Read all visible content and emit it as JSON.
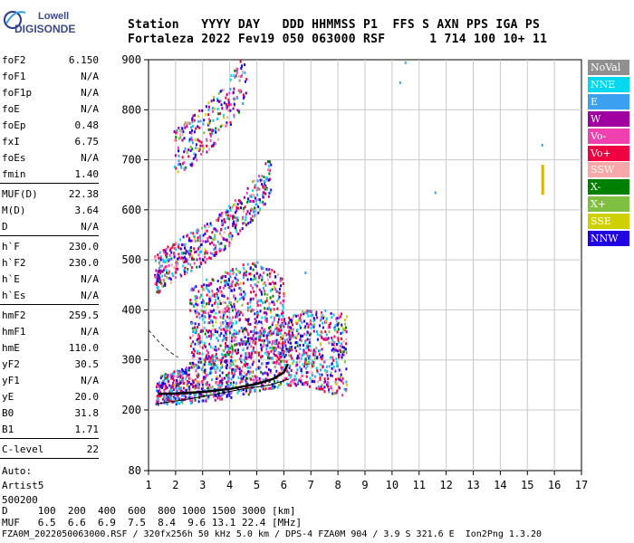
{
  "logo": {
    "line1": "Lowell",
    "line2": "DIGISONDE"
  },
  "header": {
    "row1": "Station   YYYY DAY   DDD HHMMSS P1  FFS S AXN PPS IGA PS",
    "row2": "Fortaleza 2022 Fev19 050 063000 RSF      1 714 100 10+ 11"
  },
  "params": [
    {
      "label": "foF2",
      "value": "6.150"
    },
    {
      "label": "foF1",
      "value": "N/A"
    },
    {
      "label": "foF1p",
      "value": "N/A"
    },
    {
      "label": "foE",
      "value": "N/A"
    },
    {
      "label": "foEp",
      "value": "0.48"
    },
    {
      "label": "fxI",
      "value": "6.75"
    },
    {
      "label": "foEs",
      "value": "N/A"
    },
    {
      "label": "fmin",
      "value": "1.40"
    },
    {
      "label": "MUF(D)",
      "value": "22.38"
    },
    {
      "label": "M(D)",
      "value": "3.64"
    },
    {
      "label": "D",
      "value": "N/A"
    },
    {
      "label": "h`F",
      "value": "230.0"
    },
    {
      "label": "h`F2",
      "value": "230.0"
    },
    {
      "label": "h`E",
      "value": "N/A"
    },
    {
      "label": "h`Es",
      "value": "N/A"
    },
    {
      "label": "hmF2",
      "value": "259.5"
    },
    {
      "label": "hmF1",
      "value": "N/A"
    },
    {
      "label": "hmE",
      "value": "110.0"
    },
    {
      "label": "yF2",
      "value": "30.5"
    },
    {
      "label": "yF1",
      "value": "N/A"
    },
    {
      "label": "yE",
      "value": "20.0"
    },
    {
      "label": "B0",
      "value": "31.8"
    },
    {
      "label": "B1",
      "value": "1.71"
    },
    {
      "label": "C-level",
      "value": "22"
    }
  ],
  "auto": {
    "line1": "Auto:",
    "line2": "Artist5",
    "line3": "500200"
  },
  "legend": [
    {
      "label": "NoVal",
      "color": "#909090"
    },
    {
      "label": "NNE",
      "color": "#00d8f0"
    },
    {
      "label": "E",
      "color": "#3ca0f0"
    },
    {
      "label": "W",
      "color": "#a000a0"
    },
    {
      "label": "Vo-",
      "color": "#f040b0"
    },
    {
      "label": "Vo+",
      "color": "#f00040"
    },
    {
      "label": "SSW",
      "color": "#f8a8a8"
    },
    {
      "label": "X-",
      "color": "#008000"
    },
    {
      "label": "X+",
      "color": "#80c040"
    },
    {
      "label": "SSE",
      "color": "#d0d000"
    },
    {
      "label": "NNW",
      "color": "#2000e0"
    }
  ],
  "footer": {
    "row1": "D     100  200  400  600  800 1000 1500 3000 [km]",
    "row2": "MUF   6.5  6.6  6.9  7.5  8.4  9.6 13.1 22.4 [MHz]",
    "row3": "FZA0M_2022050063000.RSF / 320fx256h 50 kHz 5.0 km / DPS-4 FZA0M 904 / 3.9 S 321.6 E  Ion2Png 1.3.20"
  },
  "chart_data": {
    "type": "scatter",
    "x_ticks": [
      "1",
      "2",
      "3",
      "4",
      "5",
      "6",
      "7",
      "8",
      "9",
      "10",
      "11",
      "12",
      "13",
      "14",
      "15",
      "16",
      "17"
    ],
    "y_ticks": [
      "80",
      "200",
      "300",
      "400",
      "500",
      "600",
      "700",
      "800",
      "900"
    ],
    "xlim": [
      1,
      17
    ],
    "y_axis_values": [
      80,
      200,
      300,
      400,
      500,
      600,
      700,
      800,
      900
    ],
    "grid": true,
    "x_unit": "MHz",
    "y_unit": "km",
    "traces": [
      {
        "name": "lower F trace",
        "x": [
          1.25,
          1.5,
          2.0,
          2.5,
          3.0,
          3.5,
          4.0,
          4.5,
          5.0,
          5.5,
          6.0,
          6.3,
          6.6,
          7.0,
          7.5,
          8.0,
          8.3
        ],
        "y": [
          232,
          235,
          238,
          242,
          248,
          255,
          262,
          270,
          280,
          290,
          295,
          300,
          305,
          300,
          295,
          290,
          285
        ]
      },
      {
        "name": "F second hop",
        "x": [
          1.2,
          1.6,
          2.0,
          2.5,
          3.0,
          3.5,
          4.0,
          4.5,
          5.0,
          5.5
        ],
        "y": [
          460,
          475,
          490,
          505,
          520,
          540,
          560,
          590,
          620,
          660
        ]
      },
      {
        "name": "upper trace",
        "x": [
          1.9,
          2.3,
          2.8,
          3.3,
          3.8,
          4.2,
          4.6
        ],
        "y": [
          700,
          712,
          735,
          760,
          790,
          820,
          860
        ]
      },
      {
        "name": "mid cluster",
        "x": [
          2.5,
          3.0,
          3.5,
          4.0,
          4.5,
          5.0,
          5.5,
          6.0
        ],
        "y": [
          340,
          360,
          370,
          380,
          390,
          395,
          380,
          360
        ]
      }
    ],
    "profile_line": {
      "x": [
        1.35,
        2.0,
        3.0,
        4.0,
        5.0,
        5.6,
        6.0,
        6.15
      ],
      "y": [
        232,
        233,
        236,
        242,
        252,
        262,
        275,
        292
      ]
    },
    "model_curve": {
      "x": [
        1.25,
        2.5,
        3.5,
        4.5,
        5.5,
        6.2
      ],
      "y": [
        212,
        222,
        232,
        242,
        250,
        262
      ]
    },
    "isolated_points": [
      {
        "x": 10.3,
        "y": 855
      },
      {
        "x": 10.5,
        "y": 895
      },
      {
        "x": 11.6,
        "y": 635
      },
      {
        "x": 15.55,
        "y": 730
      },
      {
        "x": 6.8,
        "y": 475
      }
    ],
    "vertical_marks": [
      {
        "x": 15.55,
        "y_from": 630,
        "y_to": 690
      }
    ]
  }
}
